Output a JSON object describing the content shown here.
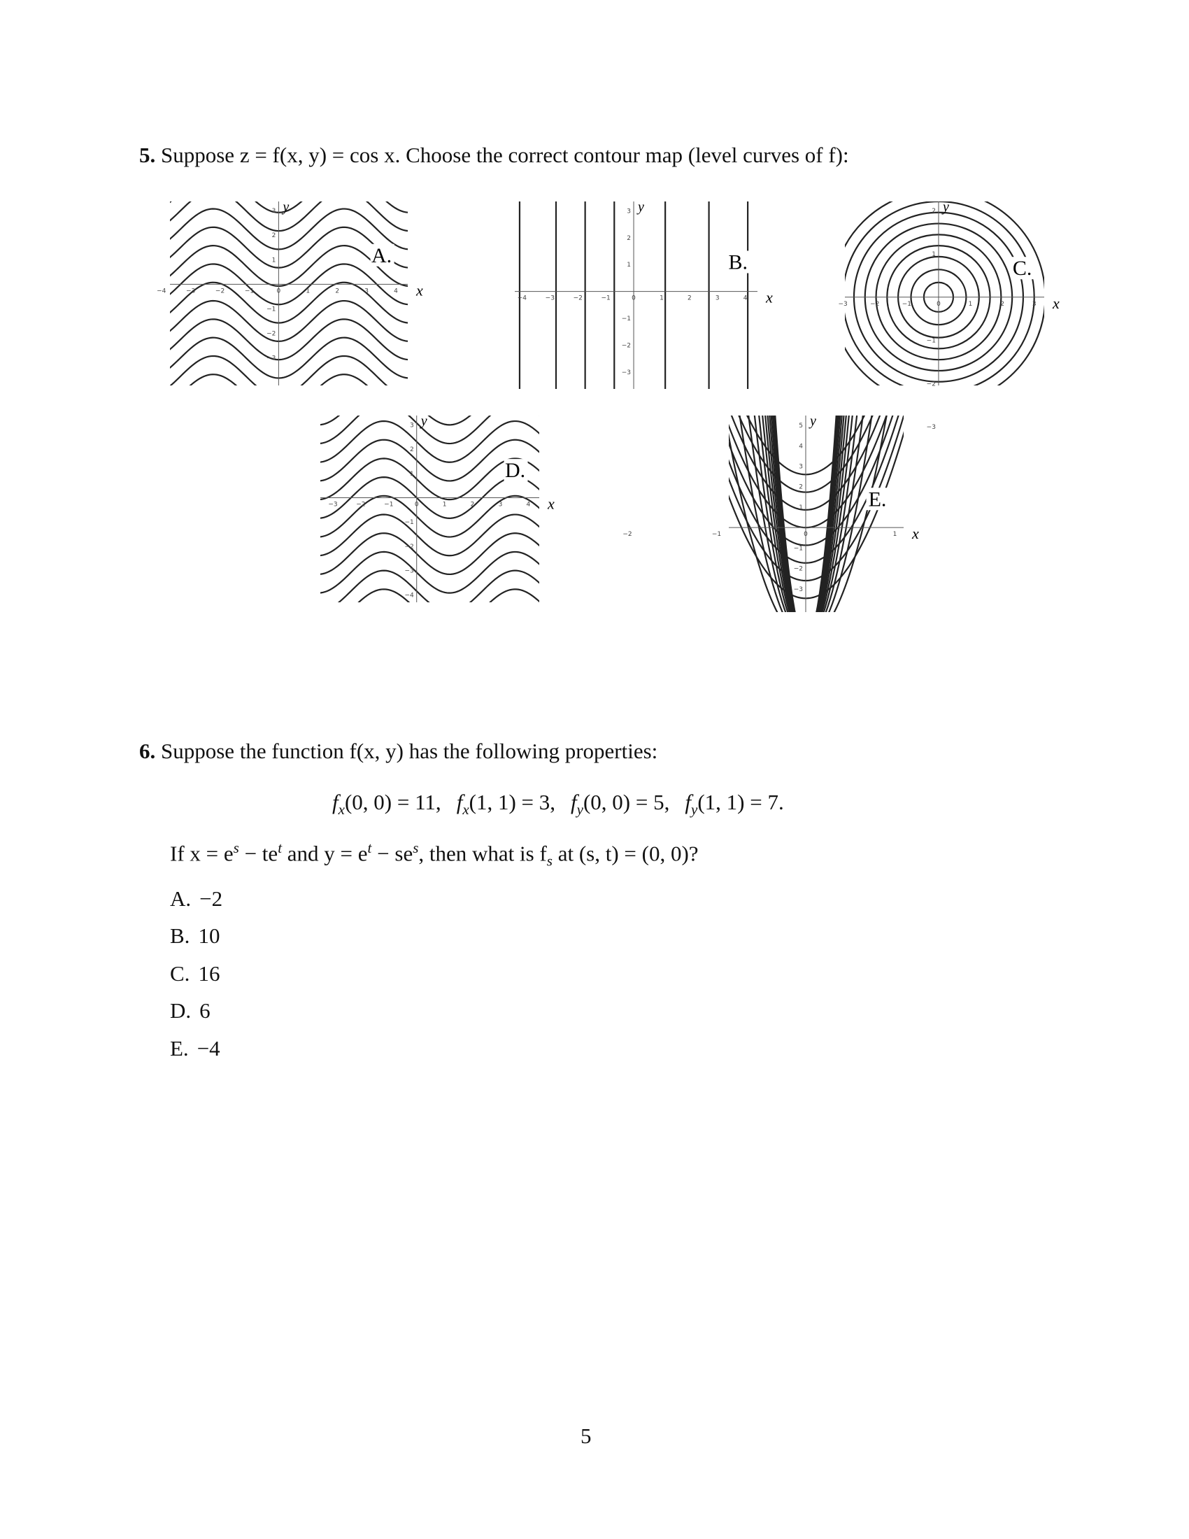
{
  "question5": {
    "number": "5.",
    "text": "Suppose z = f(x, y) = cos x. Choose the correct contour map (level curves of f):",
    "plots": [
      {
        "label": "A.",
        "x_label": "x",
        "y_label": "y",
        "x_ticks": [
          "−4",
          "−3",
          "−2",
          "−1",
          "0",
          "1",
          "2",
          "3",
          "4"
        ],
        "y_ticks": [
          "3",
          "2",
          "1",
          "−1",
          "−2",
          "−3"
        ]
      },
      {
        "label": "B.",
        "x_label": "x",
        "y_label": "y",
        "x_ticks": [
          "−4",
          "−3",
          "−2",
          "−1",
          "0",
          "1",
          "2",
          "3",
          "4"
        ],
        "y_ticks": [
          "3",
          "2",
          "1",
          "−1",
          "−2",
          "−3"
        ]
      },
      {
        "label": "C.",
        "x_label": "x",
        "y_label": "y",
        "x_ticks": [
          "−3",
          "−2",
          "−1",
          "0",
          "1",
          "2",
          "3"
        ],
        "y_ticks": [
          "2",
          "1",
          "−1",
          "−2",
          "−3"
        ]
      },
      {
        "label": "D.",
        "x_label": "x",
        "y_label": "y",
        "x_ticks": [
          "−3",
          "−2",
          "−1",
          "0",
          "1",
          "2",
          "3",
          "4"
        ],
        "y_ticks": [
          "3",
          "2",
          "1",
          "−1",
          "−2",
          "−3",
          "−4"
        ]
      },
      {
        "label": "E.",
        "x_label": "x",
        "y_label": "y",
        "x_ticks": [
          "−2",
          "−1",
          "0",
          "1"
        ],
        "y_ticks": [
          "5",
          "4",
          "3",
          "2",
          "1",
          "−1",
          "−2",
          "−3"
        ]
      }
    ]
  },
  "question6": {
    "number": "6.",
    "text": "Suppose the function f(x, y) has the following properties:",
    "conditions": [
      [
        "f",
        "x",
        "(0, 0) = 11,"
      ],
      [
        "f",
        "x",
        "(1, 1) = 3,"
      ],
      [
        "f",
        "y",
        "(0, 0) = 5,"
      ],
      [
        "f",
        "y",
        "(1, 1) = 7."
      ]
    ],
    "prompt": [
      "If x = e",
      "s",
      " − te",
      "t",
      " and y = e",
      "t",
      " − se",
      "s",
      ", then what is f",
      "s",
      " at (s, t) = (0, 0)?"
    ],
    "choices": [
      {
        "letter": "A.",
        "text": "−2"
      },
      {
        "letter": "B.",
        "text": "10"
      },
      {
        "letter": "C.",
        "text": "16"
      },
      {
        "letter": "D.",
        "text": "6"
      },
      {
        "letter": "E.",
        "text": "−4"
      }
    ]
  },
  "page_number": "5"
}
